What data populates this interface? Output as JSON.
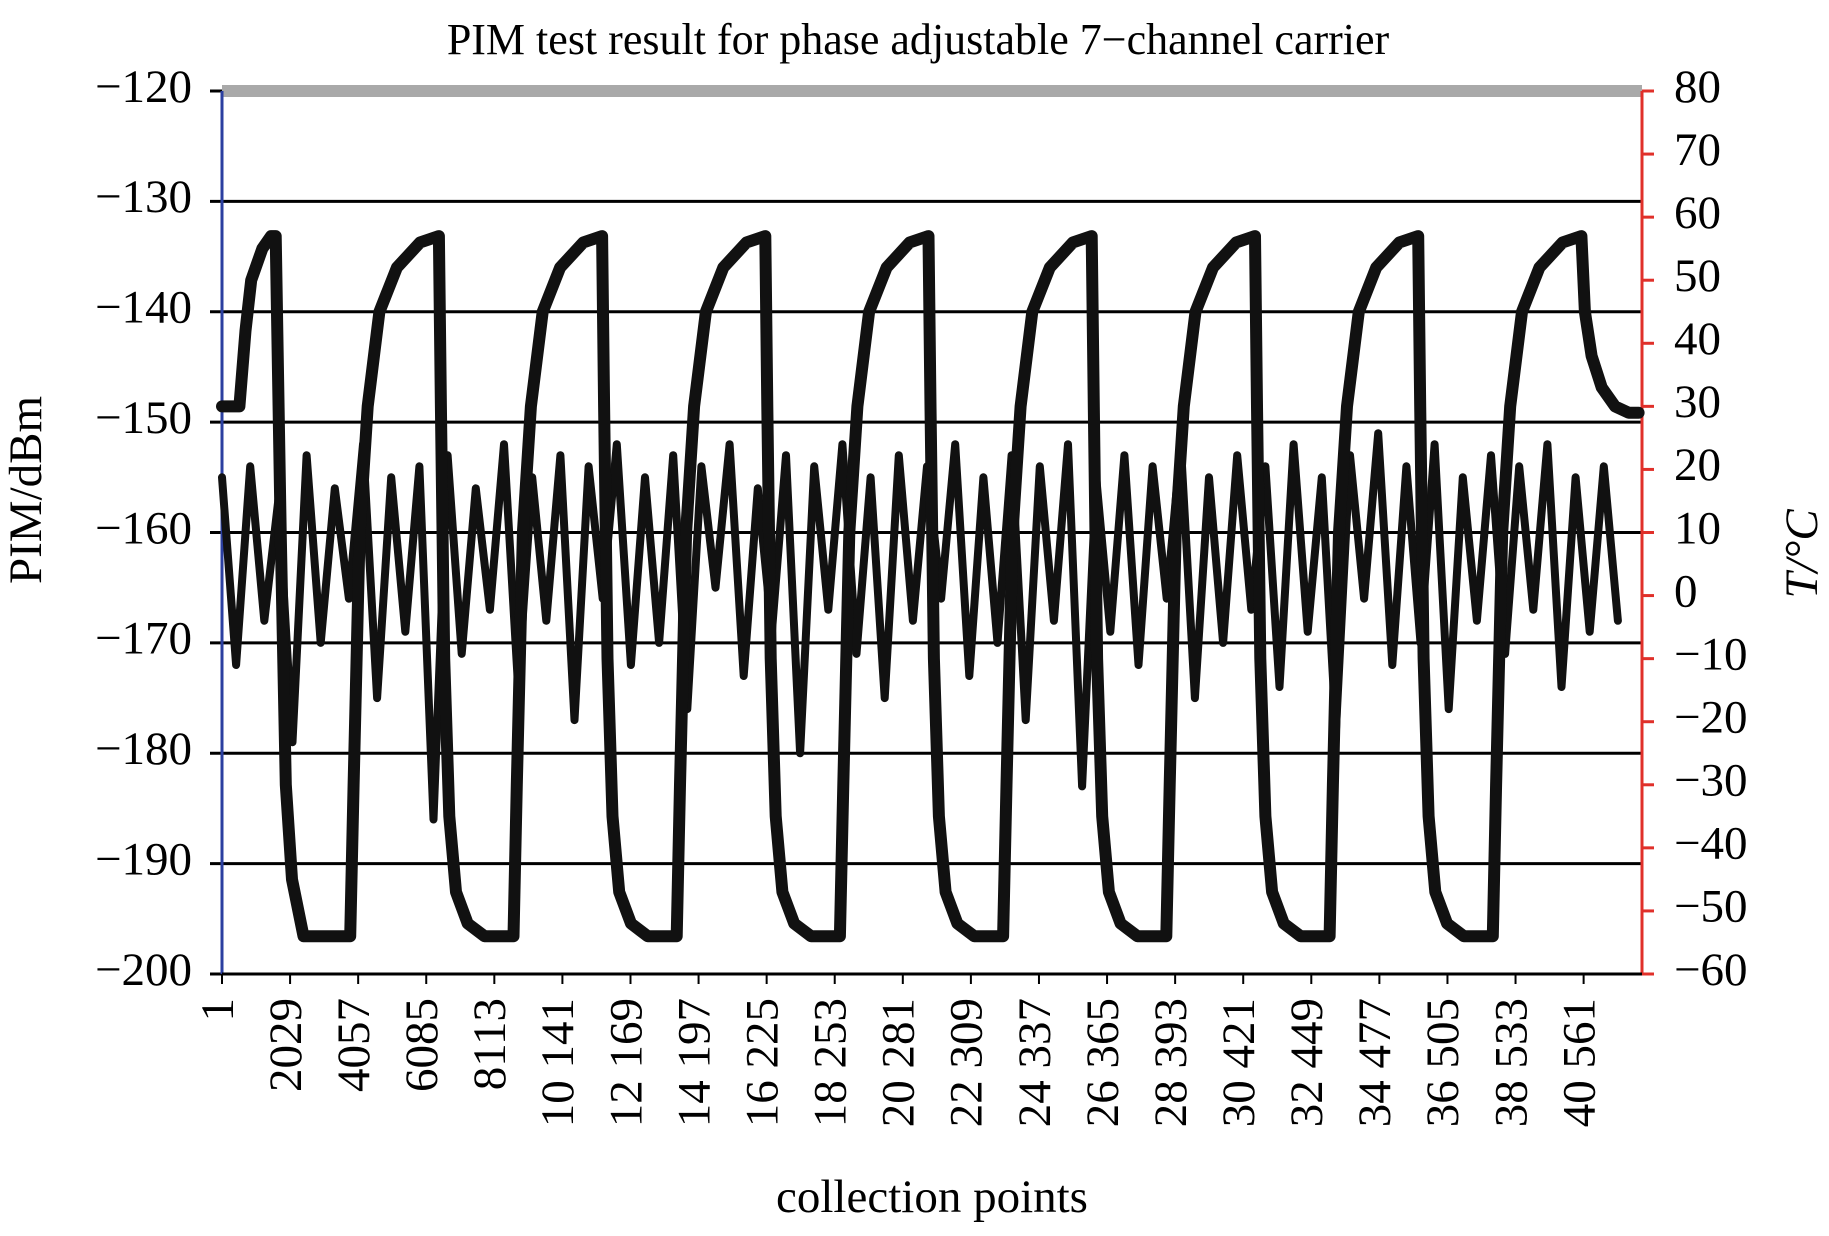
{
  "chart_data": {
    "type": "line",
    "title": "PIM test result for phase adjustable 7−channel carrier",
    "xlabel": "collection points",
    "ylabel": "PIM/dBm",
    "y2label": "T/°C",
    "xlim": [
      1,
      42300
    ],
    "xticks": [
      1,
      2029,
      4057,
      6085,
      8113,
      {
        "value": 10141,
        "label": "10 141"
      },
      {
        "value": 12169,
        "label": "12 169"
      },
      {
        "value": 14197,
        "label": "14 197"
      },
      {
        "value": 16225,
        "label": "16 225"
      },
      {
        "value": 18253,
        "label": "18 253"
      },
      {
        "value": 20281,
        "label": "20 281"
      },
      {
        "value": 22309,
        "label": "22 309"
      },
      {
        "value": 24337,
        "label": "24 337"
      },
      {
        "value": 26365,
        "label": "26 365"
      },
      {
        "value": 28393,
        "label": "28 393"
      },
      {
        "value": 30421,
        "label": "30 421"
      },
      {
        "value": 32449,
        "label": "32 449"
      },
      {
        "value": 34477,
        "label": "34 477"
      },
      {
        "value": 36505,
        "label": "36 505"
      },
      {
        "value": 38533,
        "label": "38 533"
      },
      {
        "value": 40561,
        "label": "40 561"
      }
    ],
    "ylim": [
      -200,
      -120
    ],
    "yticks": [
      {
        "value": -120,
        "label": "−120"
      },
      {
        "value": -130,
        "label": "−130"
      },
      {
        "value": -140,
        "label": "−140"
      },
      {
        "value": -150,
        "label": "−150"
      },
      {
        "value": -160,
        "label": "−160"
      },
      {
        "value": -170,
        "label": "−170"
      },
      {
        "value": -180,
        "label": "−180"
      },
      {
        "value": -190,
        "label": "−190"
      },
      {
        "value": -200,
        "label": "−200"
      }
    ],
    "y2lim": [
      -60,
      80
    ],
    "y2ticks": [
      80,
      70,
      60,
      50,
      40,
      30,
      20,
      10,
      0,
      {
        "value": -10,
        "label": "−10"
      },
      {
        "value": -20,
        "label": "−20"
      },
      {
        "value": -30,
        "label": "−30"
      },
      {
        "value": -40,
        "label": "−40"
      },
      {
        "value": -50,
        "label": "−50"
      },
      {
        "value": -60,
        "label": "−60"
      }
    ],
    "grid": true,
    "series": [
      {
        "color": "#111111",
        "axis": "y",
        "x": [
          1,
          421,
          841,
          1261,
          1681,
          2101,
          2521,
          2941,
          3361,
          3781,
          4201,
          4621,
          5041,
          5461,
          5881,
          6301,
          6721,
          7141,
          7561,
          7981,
          8401,
          8821,
          9241,
          9661,
          10081,
          10501,
          10921,
          11341,
          11761,
          12181,
          12601,
          13021,
          13441,
          13861,
          14281,
          14701,
          15121,
          15541,
          15961,
          16381,
          16801,
          17221,
          17641,
          18061,
          18481,
          18901,
          19321,
          19741,
          20161,
          20581,
          21001,
          21421,
          21841,
          22261,
          22681,
          23101,
          23521,
          23941,
          24361,
          24781,
          25201,
          25621,
          26041,
          26461,
          26881,
          27301,
          27721,
          28141,
          28561,
          28981,
          29401,
          29821,
          30241,
          30661,
          31081,
          31501,
          31921,
          32341,
          32761,
          33181,
          33601,
          34021,
          34441,
          34861,
          35281,
          35701,
          36121,
          36541,
          36961,
          37381,
          37801,
          38221,
          38641,
          39061,
          39481,
          39901,
          40321,
          40741,
          41161,
          41581
        ],
        "values": [
          -155,
          -172,
          -154,
          -168,
          -157,
          -179,
          -153,
          -170,
          -156,
          -166,
          -152,
          -175,
          -155,
          -169,
          -154,
          -186,
          -153,
          -171,
          -156,
          -167,
          -152,
          -174,
          -155,
          -168,
          -153,
          -177,
          -154,
          -166,
          -152,
          -172,
          -155,
          -170,
          -153,
          -176,
          -154,
          -165,
          -152,
          -173,
          -156,
          -169,
          -153,
          -180,
          -154,
          -167,
          -152,
          -171,
          -155,
          -175,
          -153,
          -168,
          -154,
          -166,
          -152,
          -173,
          -155,
          -170,
          -153,
          -177,
          -154,
          -168,
          -152,
          -183,
          -155,
          -169,
          -153,
          -172,
          -154,
          -166,
          -152,
          -175,
          -155,
          -170,
          -153,
          -167,
          -154,
          -174,
          -152,
          -169,
          -155,
          -178,
          -153,
          -166,
          -151,
          -172,
          -154,
          -170,
          -152,
          -176,
          -155,
          -168,
          -153,
          -171,
          -154,
          -167,
          -152,
          -174,
          -155,
          -169,
          -154,
          -168
        ]
      },
      {
        "color": "#111111",
        "axis": "y2",
        "x": [
          1,
          520,
          700,
          870,
          1200,
          1460,
          1600,
          1750,
          1900,
          2085,
          2430,
          3821,
          3921,
          4101,
          4341,
          4691,
          5211,
          5901,
          6461,
          6521,
          6621,
          6771,
          6971,
          7321,
          7821,
          8683,
          8783,
          8963,
          9203,
          9553,
          10073,
          10763,
          11323,
          11383,
          11483,
          11633,
          11833,
          12183,
          12683,
          13545,
          13645,
          13825,
          14065,
          14415,
          14935,
          15625,
          16185,
          16245,
          16345,
          16495,
          16695,
          17045,
          17545,
          18407,
          18507,
          18687,
          18927,
          19277,
          19797,
          20487,
          21047,
          21107,
          21207,
          21357,
          21557,
          21907,
          22407,
          23269,
          23369,
          23549,
          23789,
          24139,
          24659,
          25349,
          25909,
          25969,
          26069,
          26219,
          26419,
          26769,
          27269,
          28131,
          28231,
          28411,
          28651,
          29001,
          29521,
          30211,
          30771,
          30831,
          30931,
          31081,
          31281,
          31631,
          32131,
          32993,
          33093,
          33273,
          33513,
          33863,
          34383,
          35073,
          35633,
          35693,
          35793,
          35943,
          36143,
          36493,
          36993,
          37855,
          37955,
          38135,
          38375,
          38725,
          39245,
          39935,
          40495,
          40600,
          40800,
          41100,
          41500,
          41900,
          42200
        ],
        "values": [
          30,
          30,
          42,
          50,
          55,
          57,
          57,
          10,
          -30,
          -45,
          -54,
          -54,
          -30,
          10,
          30,
          45,
          52,
          56,
          57,
          30,
          -10,
          -35,
          -47,
          -52,
          -54,
          -54,
          -30,
          10,
          30,
          45,
          52,
          56,
          57,
          30,
          -10,
          -35,
          -47,
          -52,
          -54,
          -54,
          -30,
          10,
          30,
          45,
          52,
          56,
          57,
          30,
          -10,
          -35,
          -47,
          -52,
          -54,
          -54,
          -30,
          10,
          30,
          45,
          52,
          56,
          57,
          30,
          -10,
          -35,
          -47,
          -52,
          -54,
          -54,
          -30,
          10,
          30,
          45,
          52,
          56,
          57,
          30,
          -10,
          -35,
          -47,
          -52,
          -54,
          -54,
          -30,
          10,
          30,
          45,
          52,
          56,
          57,
          30,
          -10,
          -35,
          -47,
          -52,
          -54,
          -54,
          -30,
          10,
          30,
          45,
          52,
          56,
          57,
          30,
          -10,
          -35,
          -47,
          -52,
          -54,
          -54,
          -30,
          10,
          30,
          45,
          52,
          56,
          57,
          45,
          38,
          33,
          30,
          29,
          29
        ]
      }
    ]
  }
}
